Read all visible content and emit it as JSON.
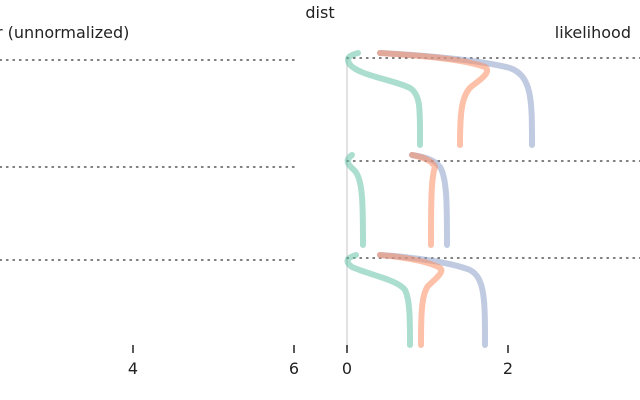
{
  "chart_data": {
    "type": "line",
    "title": "dist",
    "panels": [
      {
        "name": "prior-panel",
        "ylabel": "r (unnormalized)",
        "x_ticks": [
          {
            "value": 4,
            "label": "4"
          },
          {
            "value": 6,
            "label": "6"
          }
        ]
      },
      {
        "name": "likelihood-panel",
        "ylabel": "likelihood",
        "x_ticks": [
          {
            "value": 0,
            "label": "0"
          },
          {
            "value": 2,
            "label": "2"
          }
        ]
      }
    ],
    "levels": [
      "level-1",
      "level-2",
      "level-3"
    ],
    "series": [
      {
        "name": "green",
        "color": "#66c2a5"
      },
      {
        "name": "orange",
        "color": "#fc8d62"
      },
      {
        "name": "purple",
        "color": "#8da0cb"
      }
    ]
  }
}
